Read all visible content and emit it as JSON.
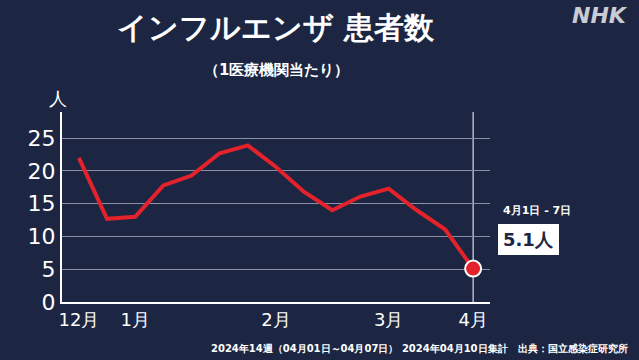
{
  "chart_data": {
    "type": "line",
    "title": "インフルエンザ 患者数",
    "subtitle": "（1医療機関当たり）",
    "y_label": "人",
    "logo": "NHK",
    "footer": "2024年14週（04月01日～04月07日） 2024年04月10日集計　出典：国立感染症研究所",
    "annotation": "4月1日 - 7日",
    "categories": [
      "12月",
      null,
      "1月",
      null,
      null,
      null,
      null,
      "2月",
      null,
      null,
      null,
      "3月",
      null,
      null,
      "4月"
    ],
    "values": [
      22.0,
      12.7,
      13.0,
      17.8,
      19.3,
      22.7,
      23.9,
      20.6,
      16.8,
      14.0,
      16.1,
      17.3,
      14.0,
      11.1,
      5.1
    ],
    "value_labels": [
      null,
      null,
      null,
      null,
      null,
      null,
      null,
      null,
      null,
      null,
      null,
      null,
      null,
      null,
      "5.1人"
    ],
    "color": "#e3222b",
    "marker": "circle",
    "ylim": [
      0,
      29
    ],
    "yticks": [
      0,
      5,
      10,
      15,
      20,
      25
    ],
    "grid": true
  }
}
